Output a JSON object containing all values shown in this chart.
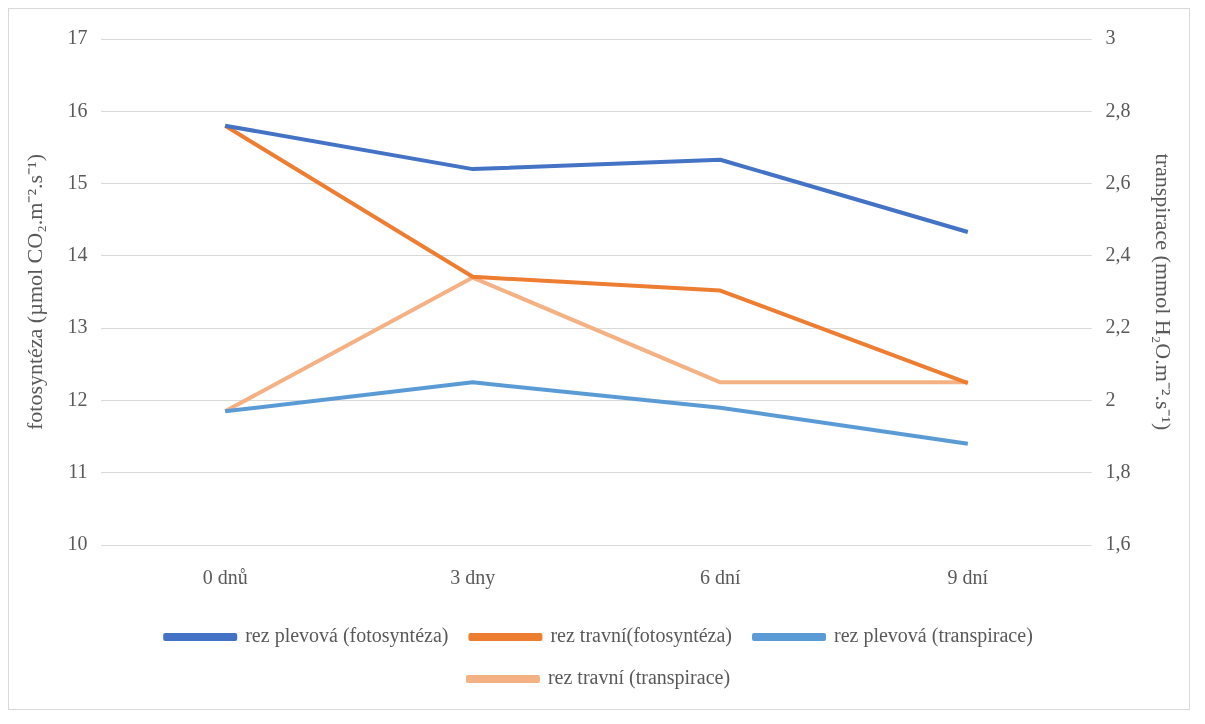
{
  "chart_data": {
    "type": "line",
    "categories": [
      "0 dnů",
      "3 dny",
      "6 dní",
      "9 dní"
    ],
    "ylabel": "fotosyntéza (µmol CO₂.m⁻².s⁻¹)",
    "y2label": "transpirace (mmol H₂O.m⁻².s⁻¹)",
    "ylim": [
      10,
      17
    ],
    "yticks": [
      10,
      11,
      12,
      13,
      14,
      15,
      16,
      17
    ],
    "y2lim": [
      1.6,
      3
    ],
    "y2ticks": [
      {
        "value": 1.6,
        "label": "1,6"
      },
      {
        "value": 1.8,
        "label": "1,8"
      },
      {
        "value": 2,
        "label": "2"
      },
      {
        "value": 2.2,
        "label": "2,2"
      },
      {
        "value": 2.4,
        "label": "2,4"
      },
      {
        "value": 2.6,
        "label": "2,6"
      },
      {
        "value": 2.8,
        "label": "2,8"
      },
      {
        "value": 3,
        "label": "3"
      }
    ],
    "grid": "y",
    "legend": "bottom",
    "marker": "none",
    "line_style": "solid",
    "series": [
      {
        "name": "rez plevová (fotosyntéza)",
        "color": "#4472c4",
        "values": [
          15.8,
          15.2,
          15.33,
          14.33
        ]
      },
      {
        "name": "rez travní(fotosyntéza)",
        "color": "#ed7d31",
        "values": [
          15.8,
          13.71,
          13.52,
          12.24
        ]
      },
      {
        "name": "rez plevová (transpirace)",
        "color": "#5b9bd5",
        "axis": "y2",
        "values": [
          1.97,
          2.05,
          1.98,
          1.88
        ]
      },
      {
        "name": "rez travní (transpirace)",
        "color": "#f4b183",
        "axis": "y2",
        "values": [
          1.97,
          2.34,
          2.05,
          2.05
        ]
      }
    ]
  }
}
